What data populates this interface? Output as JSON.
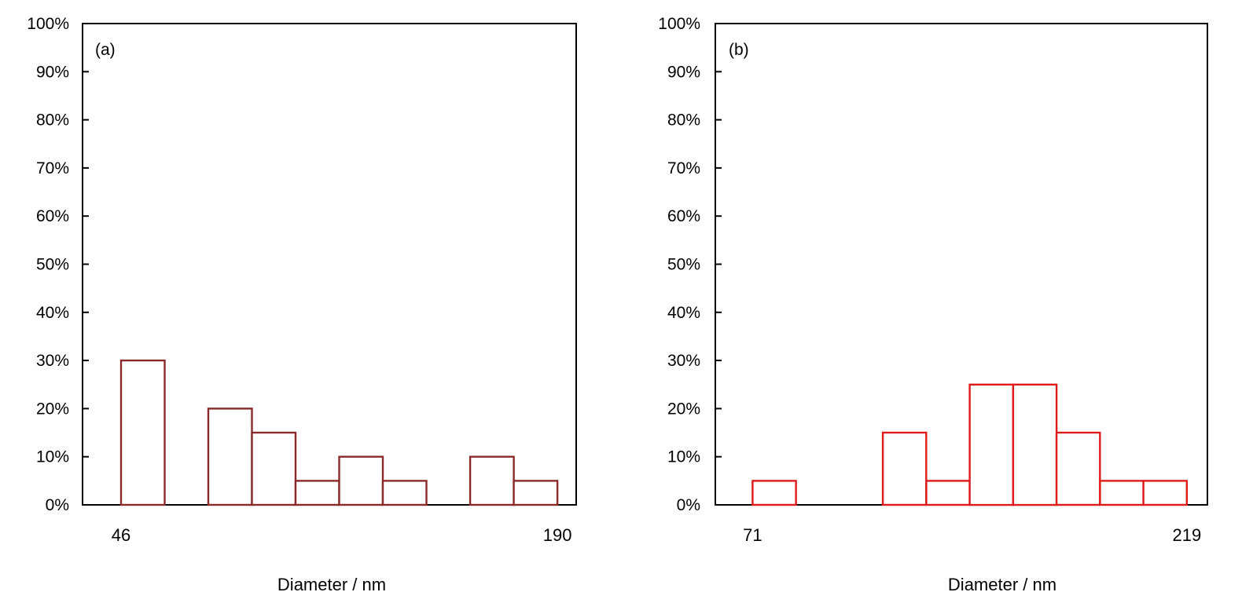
{
  "chart_data": [
    {
      "type": "bar",
      "panel_label": "(a)",
      "xlabel": "Diameter / nm",
      "x_tick_labels": [
        {
          "label": "46",
          "value": 46
        },
        {
          "label": "190",
          "value": 190
        }
      ],
      "y_tick_labels": [
        "0%",
        "10%",
        "20%",
        "30%",
        "40%",
        "50%",
        "60%",
        "70%",
        "80%",
        "90%",
        "100%"
      ],
      "ylim": [
        0,
        100
      ],
      "xlim": [
        33.3,
        196.2
      ],
      "bar_color": "#8b2a2a",
      "bars": [
        {
          "x0": 46.0,
          "x1": 60.4,
          "value": 30
        },
        {
          "x0": 74.8,
          "x1": 89.2,
          "value": 20
        },
        {
          "x0": 89.2,
          "x1": 103.6,
          "value": 15
        },
        {
          "x0": 103.6,
          "x1": 118.0,
          "value": 5
        },
        {
          "x0": 118.0,
          "x1": 132.4,
          "value": 10
        },
        {
          "x0": 132.4,
          "x1": 146.8,
          "value": 5
        },
        {
          "x0": 161.2,
          "x1": 175.6,
          "value": 10
        },
        {
          "x0": 175.6,
          "x1": 190.0,
          "value": 5
        }
      ]
    },
    {
      "type": "bar",
      "panel_label": "(b)",
      "xlabel": "Diameter / nm",
      "x_tick_labels": [
        {
          "label": "71",
          "value": 71
        },
        {
          "label": "219",
          "value": 219
        }
      ],
      "y_tick_labels": [
        "0%",
        "10%",
        "20%",
        "30%",
        "40%",
        "50%",
        "60%",
        "70%",
        "80%",
        "90%",
        "100%"
      ],
      "ylim": [
        0,
        100
      ],
      "xlim": [
        58.3,
        226.0
      ],
      "bar_color": "#e01b1b",
      "bars": [
        {
          "x0": 71.0,
          "x1": 85.8,
          "value": 5
        },
        {
          "x0": 115.4,
          "x1": 130.2,
          "value": 15
        },
        {
          "x0": 130.2,
          "x1": 145.0,
          "value": 5
        },
        {
          "x0": 145.0,
          "x1": 159.8,
          "value": 25
        },
        {
          "x0": 159.8,
          "x1": 174.6,
          "value": 25
        },
        {
          "x0": 174.6,
          "x1": 189.4,
          "value": 15
        },
        {
          "x0": 189.4,
          "x1": 204.2,
          "value": 5
        },
        {
          "x0": 204.2,
          "x1": 219.0,
          "value": 5
        }
      ]
    }
  ]
}
